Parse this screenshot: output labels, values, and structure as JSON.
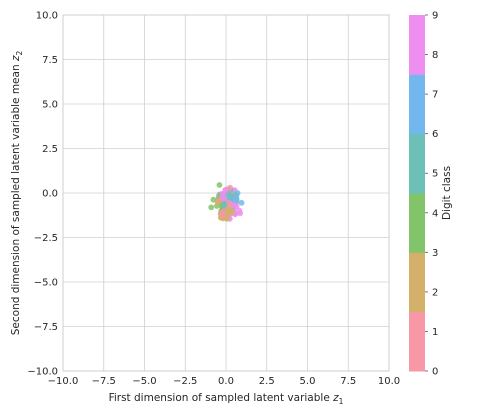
{
  "chart_data": {
    "type": "scatter",
    "xlabel_main": "First dimension of sampled latent variable ",
    "xlabel_var": "z",
    "xlabel_sub": "1",
    "ylabel_main": "Second dimension of sampled latent variable mean ",
    "ylabel_var": "z",
    "ylabel_sub": "2",
    "xlim": [
      -10,
      10
    ],
    "ylim": [
      -10,
      10
    ],
    "x_ticks": [
      "−10.0",
      "−7.5",
      "−5.0",
      "−2.5",
      "0.0",
      "2.5",
      "5.0",
      "7.5",
      "10.0"
    ],
    "y_ticks": [
      "10.0",
      "7.5",
      "5.0",
      "2.5",
      "0.0",
      "−2.5",
      "−5.0",
      "−7.5",
      "−10.0"
    ],
    "grid": true,
    "colorbar": {
      "label": "Digit class",
      "range": [
        0,
        9
      ],
      "ticks": [
        "0",
        "1",
        "2",
        "3",
        "4",
        "5",
        "6",
        "7",
        "8",
        "9"
      ],
      "bands": [
        {
          "from": 0,
          "to": 1.5,
          "color": "#f797a8"
        },
        {
          "from": 1.5,
          "to": 3,
          "color": "#d4b06a"
        },
        {
          "from": 3,
          "to": 4.5,
          "color": "#82c46a"
        },
        {
          "from": 4.5,
          "to": 6,
          "color": "#6cc0b8"
        },
        {
          "from": 6,
          "to": 7.5,
          "color": "#72b8ee"
        },
        {
          "from": 7.5,
          "to": 9,
          "color": "#ee8ef0"
        }
      ]
    },
    "cluster_center": [
      0,
      -0.45
    ],
    "spread": [
      0.32,
      0.38
    ],
    "point_count": 170,
    "class_colors": [
      "#f797a8",
      "#f797a8",
      "#d4b06a",
      "#d4b06a",
      "#82c46a",
      "#6cc0b8",
      "#6cc0b8",
      "#72b8ee",
      "#ee8ef0",
      "#ee8ef0"
    ]
  }
}
